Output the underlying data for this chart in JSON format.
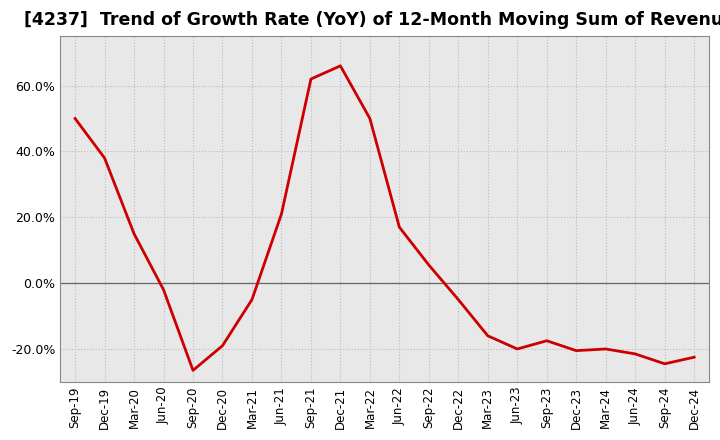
{
  "title": "[4237]  Trend of Growth Rate (YoY) of 12-Month Moving Sum of Revenues",
  "title_fontsize": 12.5,
  "line_color": "#cc0000",
  "line_width": 2.0,
  "background_color": "#ffffff",
  "plot_bg_color": "#e8e8e8",
  "grid_color": "#bbbbbb",
  "zero_line_color": "#666666",
  "ylim": [
    -0.3,
    0.75
  ],
  "yticks": [
    -0.2,
    0.0,
    0.2,
    0.4,
    0.6
  ],
  "xlabels": [
    "Sep-19",
    "Dec-19",
    "Mar-20",
    "Jun-20",
    "Sep-20",
    "Dec-20",
    "Mar-21",
    "Jun-21",
    "Sep-21",
    "Dec-21",
    "Mar-22",
    "Jun-22",
    "Sep-22",
    "Dec-22",
    "Mar-23",
    "Jun-23",
    "Sep-23",
    "Dec-23",
    "Mar-24",
    "Jun-24",
    "Sep-24",
    "Dec-24"
  ],
  "x_values": [
    0,
    1,
    2,
    3,
    4,
    5,
    6,
    7,
    8,
    9,
    10,
    11,
    12,
    13,
    14,
    15,
    16,
    17,
    18,
    19,
    20,
    21
  ],
  "y_values": [
    0.5,
    0.38,
    0.15,
    -0.02,
    -0.265,
    -0.19,
    -0.05,
    0.21,
    0.62,
    0.66,
    0.5,
    0.17,
    0.055,
    -0.05,
    -0.16,
    -0.2,
    -0.175,
    -0.205,
    -0.2,
    -0.215,
    -0.245,
    -0.225
  ]
}
